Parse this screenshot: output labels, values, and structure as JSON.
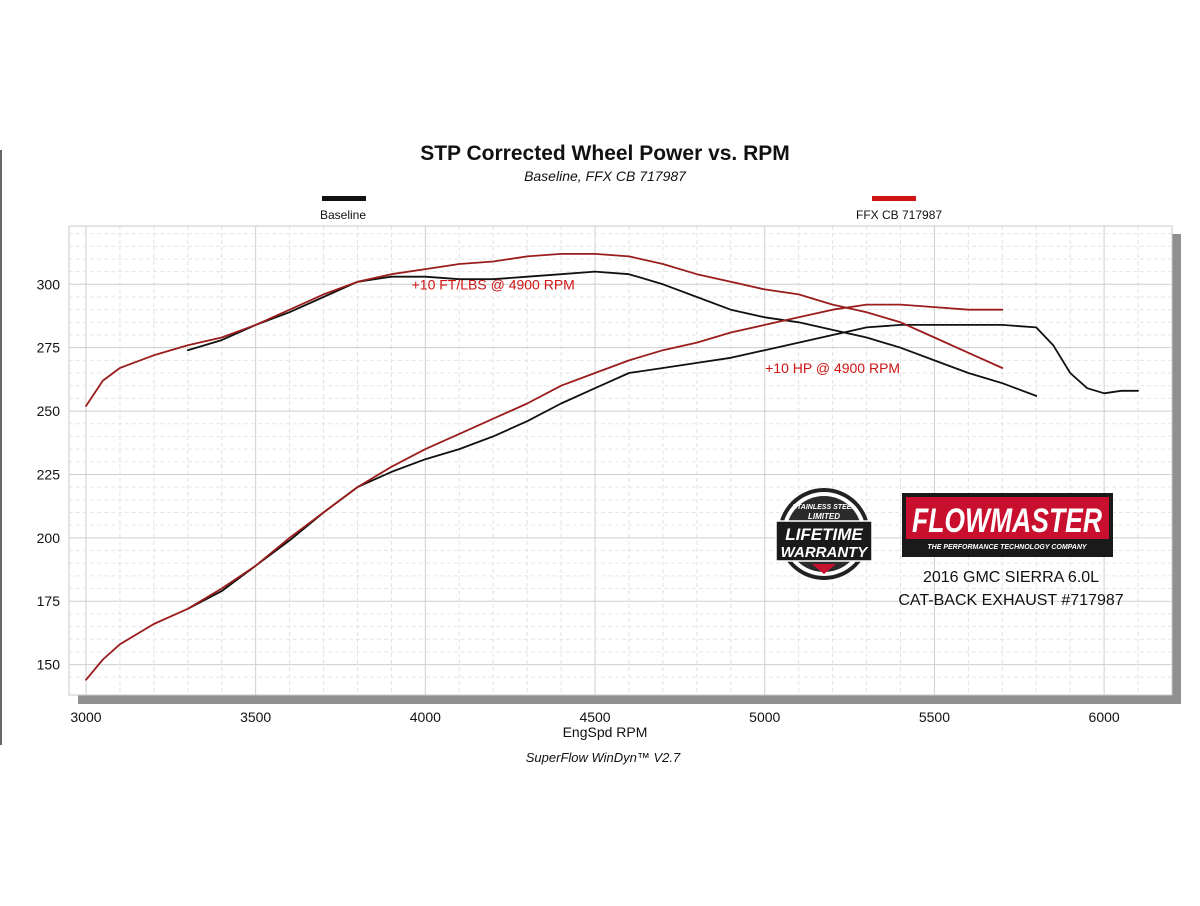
{
  "chart_data": {
    "type": "line",
    "title": "STP Corrected Wheel Power vs. RPM",
    "subtitle": "Baseline, FFX CB 717987",
    "xlabel": "EngSpd  RPM",
    "ylabel": "",
    "xlim": [
      2950,
      6200
    ],
    "ylim": [
      138,
      323
    ],
    "xticks": [
      3000,
      3500,
      4000,
      4500,
      5000,
      5500,
      6000
    ],
    "yticks": [
      150,
      175,
      200,
      225,
      250,
      275,
      300
    ],
    "grid": true,
    "legend_position": "top",
    "colors": {
      "baseline": "#111111",
      "ffx": "#9a1c1c",
      "annotation": "#d01414",
      "grid_background": "#ffffff"
    },
    "series": [
      {
        "name": "Baseline",
        "metric": "torque",
        "color": "#111111",
        "x": [
          3300,
          3400,
          3500,
          3600,
          3700,
          3800,
          3900,
          4000,
          4100,
          4200,
          4300,
          4400,
          4500,
          4600,
          4700,
          4800,
          4900,
          5000,
          5100,
          5200,
          5300,
          5400,
          5500,
          5600,
          5700,
          5800
        ],
        "y": [
          274,
          278,
          284,
          289,
          295,
          301,
          303,
          303,
          302,
          302,
          303,
          304,
          305,
          304,
          300,
          295,
          290,
          287,
          285,
          282,
          279,
          275,
          270,
          265,
          261,
          256
        ]
      },
      {
        "name": "Baseline",
        "metric": "horsepower",
        "color": "#111111",
        "x": [
          3300,
          3400,
          3500,
          3600,
          3700,
          3800,
          3900,
          4000,
          4100,
          4200,
          4300,
          4400,
          4500,
          4600,
          4700,
          4800,
          4900,
          5000,
          5100,
          5200,
          5300,
          5400,
          5500,
          5600,
          5700,
          5800,
          5850,
          5900,
          5950,
          6000,
          6050,
          6100
        ],
        "y": [
          172,
          179,
          189,
          199,
          210,
          220,
          226,
          231,
          235,
          240,
          246,
          253,
          259,
          265,
          267,
          269,
          271,
          274,
          277,
          280,
          283,
          284,
          284,
          284,
          284,
          283,
          276,
          265,
          259,
          257,
          258,
          258
        ]
      },
      {
        "name": "FFX CB 717987",
        "metric": "torque",
        "color": "#9a1c1c",
        "x": [
          3000,
          3050,
          3100,
          3200,
          3300,
          3400,
          3500,
          3600,
          3700,
          3800,
          3900,
          4000,
          4100,
          4200,
          4300,
          4400,
          4500,
          4600,
          4700,
          4800,
          4900,
          5000,
          5100,
          5200,
          5300,
          5400,
          5500,
          5600,
          5700
        ],
        "y": [
          252,
          262,
          267,
          272,
          276,
          279,
          284,
          290,
          296,
          301,
          304,
          306,
          308,
          309,
          311,
          312,
          312,
          311,
          308,
          304,
          301,
          298,
          296,
          292,
          289,
          285,
          279,
          273,
          267
        ]
      },
      {
        "name": "FFX CB 717987",
        "metric": "horsepower",
        "color": "#9a1c1c",
        "x": [
          3000,
          3050,
          3100,
          3200,
          3300,
          3400,
          3500,
          3600,
          3700,
          3800,
          3900,
          4000,
          4100,
          4200,
          4300,
          4400,
          4500,
          4600,
          4700,
          4800,
          4900,
          5000,
          5100,
          5200,
          5300,
          5400,
          5500,
          5600,
          5700
        ],
        "y": [
          144,
          152,
          158,
          166,
          172,
          180,
          189,
          200,
          210,
          220,
          228,
          235,
          241,
          247,
          253,
          260,
          265,
          270,
          274,
          277,
          281,
          284,
          287,
          290,
          292,
          292,
          291,
          290,
          290
        ]
      }
    ],
    "annotations": [
      {
        "text": "+10 FT/LBS @ 4900 RPM",
        "x": 4200,
        "y": 298
      },
      {
        "text": "+10 HP @ 4900 RPM",
        "x": 5200,
        "y": 265
      }
    ],
    "legend": [
      {
        "label": "Baseline",
        "color": "#111111"
      },
      {
        "label": "FFX CB 717987",
        "color": "#d01414"
      }
    ],
    "footer": "SuperFlow WinDyn™  V2.7"
  },
  "branding": {
    "logo_text": "FLOWMASTER",
    "tagline": "THE PERFORMANCE TECHNOLOGY COMPANY",
    "vehicle_line1": "2016 GMC SIERRA 6.0L",
    "vehicle_line2": "CAT-BACK EXHAUST #717987",
    "badge_line1": "STAINLESS STEEL",
    "badge_line2": "LIMITED",
    "badge_line3": "LIFETIME",
    "badge_line4": "WARRANTY",
    "colors": {
      "logo_red": "#c8102e",
      "logo_dark": "#1a1a1a",
      "badge_dark": "#222222"
    }
  }
}
